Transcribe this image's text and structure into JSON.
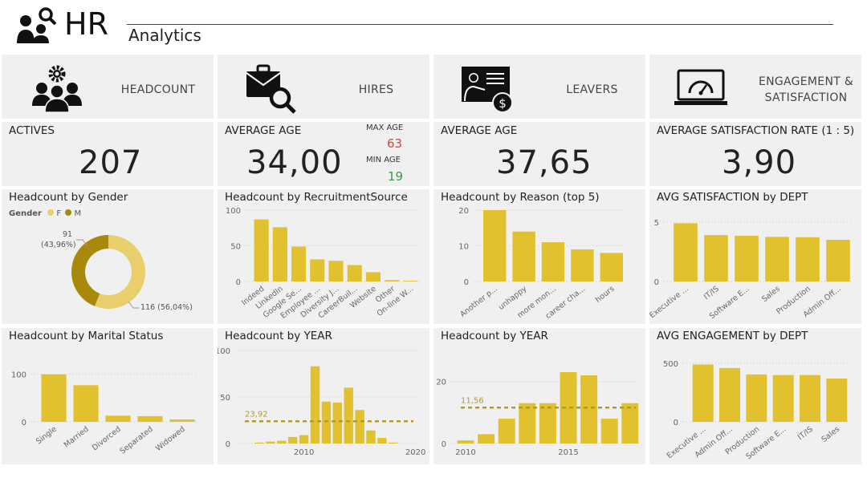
{
  "header": {
    "title": "HR",
    "subtitle": "Analytics"
  },
  "sections": [
    {
      "label": "HEADCOUNT",
      "icon": "team-gear-icon"
    },
    {
      "label": "HIRES",
      "icon": "briefcase-search-icon"
    },
    {
      "label": "LEAVERS",
      "icon": "presentation-dollar-icon"
    },
    {
      "label": "ENGAGEMENT & SATISFACTION",
      "icon": "laptop-gauge-icon"
    }
  ],
  "kpis": {
    "actives": {
      "label": "ACTIVES",
      "value": "207"
    },
    "hires_avg_age": {
      "label": "AVERAGE AGE",
      "value": "34,00",
      "max_label": "MAX AGE",
      "max_value": "63",
      "min_label": "MIN AGE",
      "min_value": "19"
    },
    "leavers_avg_age": {
      "label": "AVERAGE AGE",
      "value": "37,65"
    },
    "satisfaction": {
      "label": "AVERAGE SATISFACTION RATE (1 : 5)",
      "value": "3,90"
    }
  },
  "colors": {
    "bar": "#e2c12f",
    "female": "#e8cf6c",
    "male": "#a8890a",
    "max": "#d9453d",
    "min": "#3a9a4a",
    "avg_line": "#b59a2a"
  },
  "chart_data": [
    {
      "id": "gender",
      "type": "pie",
      "title": "Headcount by Gender",
      "legend_title": "Gender",
      "legend": "top-left",
      "categories": [
        "F",
        "M"
      ],
      "values": [
        116,
        91
      ],
      "labels": [
        "116 (56,04%)",
        "91\n(43,96%)"
      ],
      "label_f": "116 (56,04%)",
      "label_m_count": "91",
      "label_m_pct": "(43,96%)"
    },
    {
      "id": "recruitment",
      "type": "bar",
      "title": "Headcount by RecruitmentSource",
      "categories": [
        "Indeed",
        "LinkedIn",
        "Google Se...",
        "Employee ...",
        "Diversity J...",
        "CareerBuil...",
        "Website",
        "Other",
        "On-line W..."
      ],
      "values": [
        87,
        76,
        49,
        31,
        29,
        23,
        13,
        2,
        1
      ],
      "ylim": [
        0,
        100
      ],
      "yticks": [
        0,
        50,
        100
      ]
    },
    {
      "id": "reason",
      "type": "bar",
      "title": "Headcount by Reason (top 5)",
      "categories": [
        "Another p...",
        "unhappy",
        "more mon...",
        "career cha...",
        "hours"
      ],
      "values": [
        20,
        14,
        11,
        9,
        8
      ],
      "ylim": [
        0,
        20
      ],
      "yticks": [
        0,
        10,
        20
      ]
    },
    {
      "id": "satisfaction",
      "type": "bar",
      "title": "AVG SATISFACTION by DEPT",
      "categories": [
        "Executive ...",
        "IT/IS",
        "Software E...",
        "Sales",
        "Production",
        "Admin Off..."
      ],
      "values": [
        4.9,
        3.9,
        3.85,
        3.75,
        3.72,
        3.5
      ],
      "ylim": [
        0,
        6
      ],
      "yticks": [
        0,
        5
      ]
    },
    {
      "id": "marital",
      "type": "bar",
      "title": "Headcount by Marital Status",
      "categories": [
        "Single",
        "Married",
        "Divorced",
        "Separated",
        "Widowed"
      ],
      "values": [
        100,
        77,
        13,
        12,
        5
      ],
      "ylim": [
        0,
        150
      ],
      "yticks": [
        0,
        100
      ]
    },
    {
      "id": "hires_year",
      "type": "bar",
      "title": "Headcount by YEAR",
      "x": [
        2006,
        2007,
        2008,
        2009,
        2010,
        2011,
        2012,
        2013,
        2014,
        2015,
        2016,
        2017,
        2018
      ],
      "values": [
        1,
        2,
        3,
        7,
        9,
        83,
        45,
        44,
        60,
        36,
        14,
        6,
        1
      ],
      "ylim": [
        0,
        100
      ],
      "yticks": [
        0,
        50,
        100
      ],
      "xticks": [
        2010,
        2020
      ],
      "average": 23.92,
      "average_label": "23,92"
    },
    {
      "id": "leavers_year",
      "type": "bar",
      "title": "Headcount by YEAR",
      "x": [
        2010,
        2011,
        2012,
        2013,
        2014,
        2015,
        2016,
        2017,
        2018
      ],
      "values": [
        1,
        3,
        8,
        13,
        13,
        23,
        22,
        8,
        13
      ],
      "ylim": [
        0,
        30
      ],
      "yticks": [
        0,
        20
      ],
      "xticks": [
        2010,
        2015
      ],
      "average": 11.56,
      "average_label": "11,56"
    },
    {
      "id": "engagement",
      "type": "bar",
      "title": "AVG ENGAGEMENT by DEPT",
      "categories": [
        "Executive ...",
        "Admin Off...",
        "Production",
        "Software E...",
        "IT/IS",
        "Sales"
      ],
      "values": [
        490,
        460,
        405,
        400,
        400,
        370
      ],
      "ylim": [
        0,
        610
      ],
      "yticks": [
        0,
        500
      ]
    }
  ]
}
